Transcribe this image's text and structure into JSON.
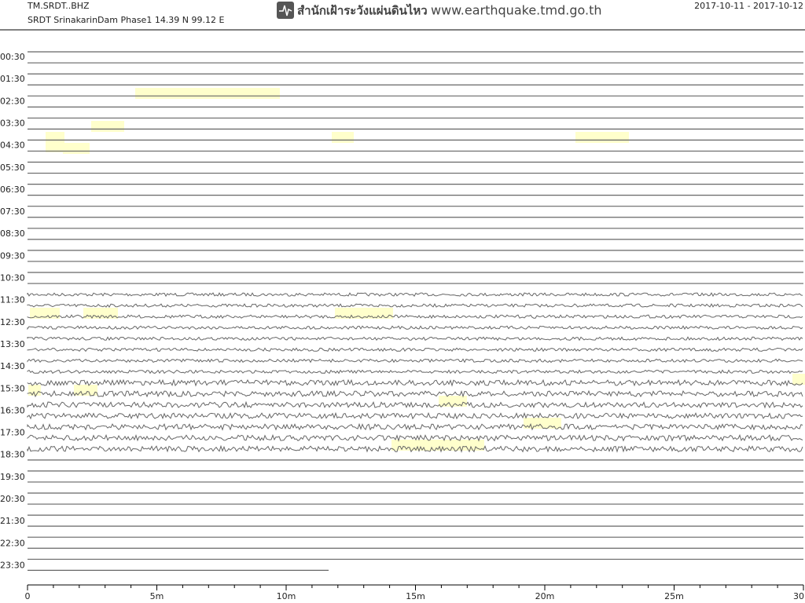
{
  "header": {
    "station": "TM.SRDT..BHZ",
    "site": "SRDT SrinakarinDam Phase1  14.39 N 99.12 E",
    "agency": "สำนักเฝ้าระวังแผ่นดินไหว",
    "url": "www.earthquake.tmd.go.th",
    "date_range": "2017-10-11 - 2017-10-12"
  },
  "x_axis": {
    "range": [
      0,
      30
    ],
    "ticks": [
      0,
      {
        "value": 5,
        "label": "5m"
      },
      {
        "value": 10,
        "label": "10m"
      },
      {
        "value": 15,
        "label": "15m"
      },
      {
        "value": 20,
        "label": "20m"
      },
      {
        "value": 25,
        "label": "25m"
      },
      30
    ]
  },
  "rows": [
    "00:30",
    "01:30",
    "02:30",
    "03:30",
    "04:30",
    "05:30",
    "06:30",
    "07:30",
    "08:30",
    "09:30",
    "10:30",
    "11:30",
    "12:30",
    "13:30",
    "14:30",
    "15:30",
    "16:30",
    "17:30",
    "18:30",
    "19:30",
    "20:30",
    "21:30",
    "22:30",
    "23:30"
  ]
}
